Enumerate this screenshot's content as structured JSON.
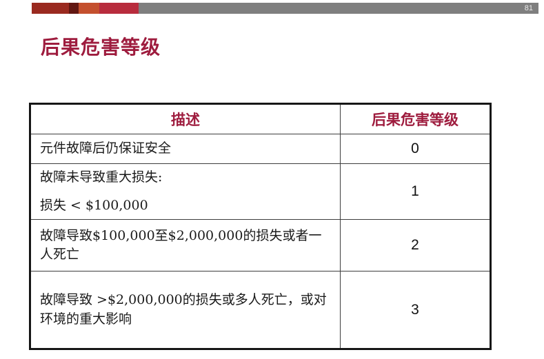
{
  "page": {
    "number": "81"
  },
  "title": "后果危害等级",
  "decoration": {
    "block_colors": [
      "#9a2a20",
      "#621712",
      "#c4502e",
      "#b82c3d"
    ],
    "bar_color": "#7f7f7f"
  },
  "colors": {
    "accent": "#9e1c3e"
  },
  "table": {
    "headers": [
      "描述",
      "后果危害等级"
    ],
    "rows": [
      {
        "description": [
          "元件故障后仍保证安全"
        ],
        "level": "0"
      },
      {
        "description": [
          "故障未导致重大损失:",
          "损失 < $100,000"
        ],
        "level": "1"
      },
      {
        "description": [
          "故障导致$100,000至$2,000,000的损失或者一人死亡"
        ],
        "level": "2"
      },
      {
        "description": [
          "故障导致 >$2,000,000的损失或多人死亡，或对环境的重大影响"
        ],
        "level": "3"
      }
    ]
  }
}
